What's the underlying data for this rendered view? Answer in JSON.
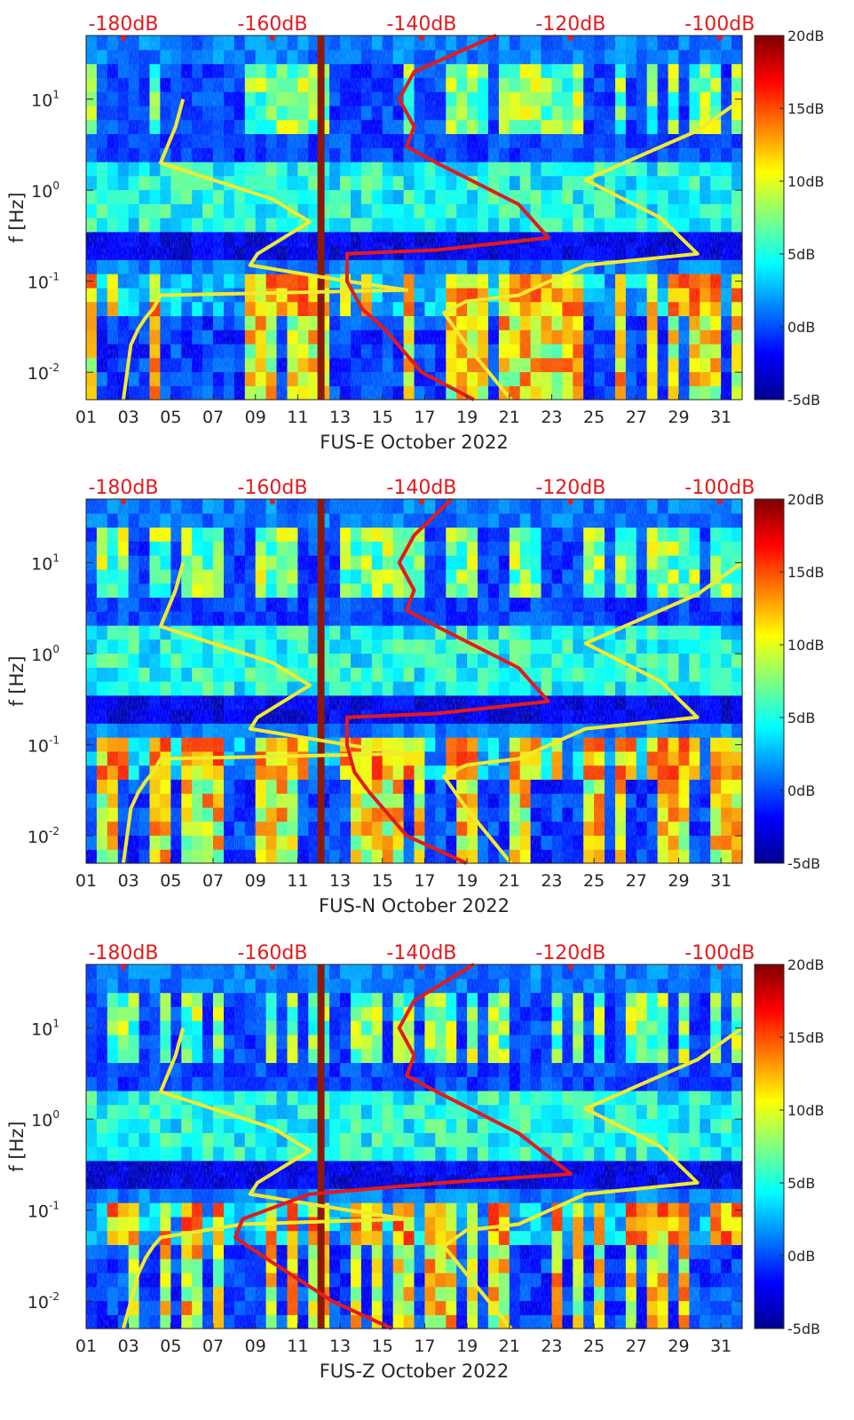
{
  "chart_data": [
    {
      "type": "heatmap",
      "title": "",
      "xlabel": "FUS-E October 2022",
      "ylabel": "f [Hz]",
      "ylim": [
        0.005,
        50
      ],
      "yscale": "log",
      "xlim": [
        1,
        32
      ],
      "x_ticks": [
        "01",
        "03",
        "05",
        "07",
        "09",
        "11",
        "13",
        "15",
        "17",
        "19",
        "21",
        "23",
        "25",
        "27",
        "29",
        "31"
      ],
      "y_ticks": [
        {
          "base": "10",
          "exp": "-2"
        },
        {
          "base": "10",
          "exp": "-1"
        },
        {
          "base": "10",
          "exp": "0"
        },
        {
          "base": "10",
          "exp": "1"
        }
      ],
      "top_ticks": [
        "-180dB",
        "-160dB",
        "-140dB",
        "-120dB",
        "-100dB"
      ],
      "top_range": [
        -185,
        -97
      ],
      "colorbar": {
        "ticks": [
          "20dB",
          "15dB",
          "10dB",
          "5dB",
          "0dB",
          "-5dB"
        ],
        "range": [
          -5,
          20
        ]
      },
      "vertical_marker_day": 12.1,
      "series": [
        {
          "color": "#f2ea2e",
          "x": [
            -172,
            -173,
            -175,
            -168,
            -160,
            -155,
            -162,
            -163,
            -150,
            -142,
            -175,
            -176,
            -177,
            -178,
            -179,
            -180
          ],
          "y": [
            10,
            5,
            2,
            1.3,
            0.8,
            0.45,
            0.2,
            0.15,
            0.1,
            0.08,
            0.07,
            0.05,
            0.04,
            0.03,
            0.02,
            0.005
          ]
        },
        {
          "color": "#f2ea2e",
          "x": [
            -97,
            -103,
            -118,
            -108,
            -103,
            -118,
            -127,
            -134,
            -137,
            -134,
            -128
          ],
          "y": [
            10,
            4.5,
            1.3,
            0.5,
            0.2,
            0.15,
            0.07,
            0.06,
            0.045,
            0.02,
            0.005
          ]
        },
        {
          "color": "#e41a1c",
          "x": [
            -130,
            -141,
            -143,
            -141,
            -142,
            -138,
            -127,
            -123,
            -138,
            -150,
            -150,
            -148,
            -145,
            -140,
            -133
          ],
          "y": [
            50,
            20,
            10,
            5,
            3,
            2,
            0.7,
            0.3,
            0.22,
            0.2,
            0.1,
            0.05,
            0.03,
            0.01,
            0.005
          ]
        }
      ]
    },
    {
      "type": "heatmap",
      "title": "",
      "xlabel": "FUS-N October 2022",
      "ylabel": "f [Hz]",
      "ylim": [
        0.005,
        50
      ],
      "yscale": "log",
      "xlim": [
        1,
        32
      ],
      "x_ticks": [
        "01",
        "03",
        "05",
        "07",
        "09",
        "11",
        "13",
        "15",
        "17",
        "19",
        "21",
        "23",
        "25",
        "27",
        "29",
        "31"
      ],
      "y_ticks": [
        {
          "base": "10",
          "exp": "-2"
        },
        {
          "base": "10",
          "exp": "-1"
        },
        {
          "base": "10",
          "exp": "0"
        },
        {
          "base": "10",
          "exp": "1"
        }
      ],
      "top_ticks": [
        "-180dB",
        "-160dB",
        "-140dB",
        "-120dB",
        "-100dB"
      ],
      "top_range": [
        -185,
        -97
      ],
      "colorbar": {
        "ticks": [
          "20dB",
          "15dB",
          "10dB",
          "5dB",
          "0dB",
          "-5dB"
        ],
        "range": [
          -5,
          20
        ]
      },
      "vertical_marker_day": 12.1,
      "series": [
        {
          "color": "#f2ea2e",
          "x": [
            -172,
            -173,
            -175,
            -168,
            -160,
            -155,
            -162,
            -163,
            -150,
            -142,
            -175,
            -176,
            -177,
            -178,
            -179,
            -180
          ],
          "y": [
            10,
            5,
            2,
            1.3,
            0.8,
            0.45,
            0.2,
            0.15,
            0.1,
            0.08,
            0.07,
            0.05,
            0.04,
            0.03,
            0.02,
            0.005
          ]
        },
        {
          "color": "#f2ea2e",
          "x": [
            -97,
            -103,
            -118,
            -108,
            -103,
            -118,
            -127,
            -134,
            -137,
            -134,
            -128
          ],
          "y": [
            10,
            4.5,
            1.3,
            0.5,
            0.2,
            0.15,
            0.07,
            0.06,
            0.045,
            0.02,
            0.005
          ]
        },
        {
          "color": "#e41a1c",
          "x": [
            -136,
            -141,
            -143,
            -141,
            -142,
            -138,
            -127,
            -123,
            -138,
            -150,
            -150,
            -149,
            -147,
            -142,
            -134
          ],
          "y": [
            50,
            20,
            10,
            5,
            3,
            2,
            0.7,
            0.3,
            0.22,
            0.2,
            0.1,
            0.05,
            0.03,
            0.01,
            0.005
          ]
        }
      ]
    },
    {
      "type": "heatmap",
      "title": "",
      "xlabel": "FUS-Z October 2022",
      "ylabel": "f [Hz]",
      "ylim": [
        0.005,
        50
      ],
      "yscale": "log",
      "xlim": [
        1,
        32
      ],
      "x_ticks": [
        "01",
        "03",
        "05",
        "07",
        "09",
        "11",
        "13",
        "15",
        "17",
        "19",
        "21",
        "23",
        "25",
        "27",
        "29",
        "31"
      ],
      "y_ticks": [
        {
          "base": "10",
          "exp": "-2"
        },
        {
          "base": "10",
          "exp": "-1"
        },
        {
          "base": "10",
          "exp": "0"
        },
        {
          "base": "10",
          "exp": "1"
        }
      ],
      "top_ticks": [
        "-180dB",
        "-160dB",
        "-140dB",
        "-120dB",
        "-100dB"
      ],
      "top_range": [
        -185,
        -97
      ],
      "colorbar": {
        "ticks": [
          "20dB",
          "15dB",
          "10dB",
          "5dB",
          "0dB",
          "-5dB"
        ],
        "range": [
          -5,
          20
        ]
      },
      "vertical_marker_day": 12.1,
      "series": [
        {
          "color": "#f2ea2e",
          "x": [
            -172,
            -173,
            -175,
            -168,
            -160,
            -155,
            -162,
            -163,
            -150,
            -142,
            -164,
            -175,
            -176,
            -177,
            -178,
            -179,
            -180
          ],
          "y": [
            10,
            5,
            2,
            1.3,
            0.8,
            0.45,
            0.2,
            0.15,
            0.1,
            0.08,
            0.07,
            0.05,
            0.04,
            0.03,
            0.02,
            0.01,
            0.005
          ]
        },
        {
          "color": "#f2ea2e",
          "x": [
            -97,
            -103,
            -118,
            -108,
            -103,
            -118,
            -127,
            -134,
            -137,
            -134,
            -128
          ],
          "y": [
            10,
            4.5,
            1.3,
            0.5,
            0.2,
            0.15,
            0.07,
            0.06,
            0.04,
            0.02,
            0.005
          ]
        },
        {
          "color": "#e41a1c",
          "x": [
            -133,
            -141,
            -143,
            -141,
            -142,
            -138,
            -127,
            -120,
            -137,
            -155,
            -164,
            -165,
            -161,
            -152,
            -144
          ],
          "y": [
            50,
            20,
            10,
            5,
            3,
            2,
            0.7,
            0.25,
            0.2,
            0.15,
            0.08,
            0.05,
            0.03,
            0.01,
            0.005
          ]
        }
      ]
    }
  ]
}
